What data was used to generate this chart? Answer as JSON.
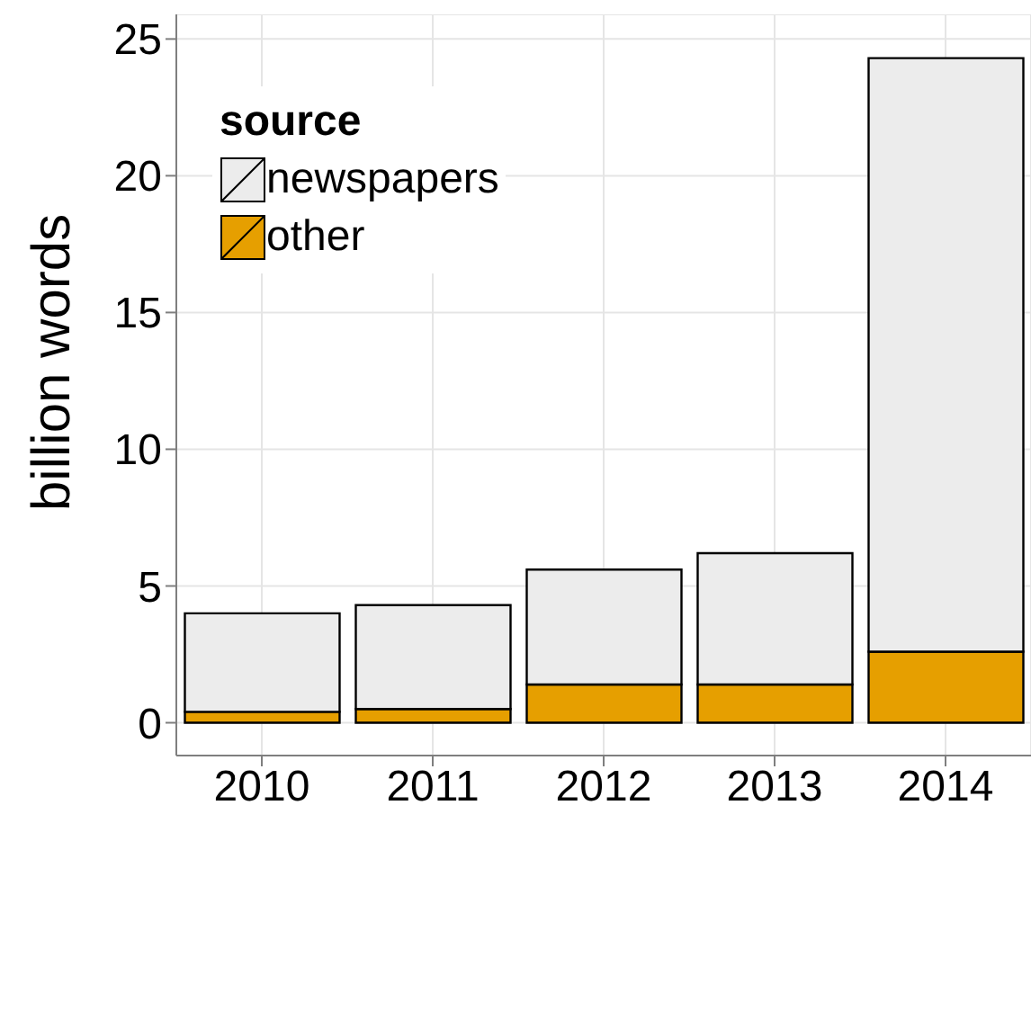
{
  "chart_data": {
    "type": "bar",
    "stacked": true,
    "ylabel": "billion words",
    "legend_title": "source",
    "categories": [
      "2010",
      "2011",
      "2012",
      "2013",
      "2014"
    ],
    "series": [
      {
        "name": "other",
        "color": "#e69f00",
        "values": [
          0.4,
          0.5,
          1.4,
          1.4,
          2.6
        ]
      },
      {
        "name": "newspapers",
        "color": "#ececec",
        "values": [
          3.6,
          3.8,
          4.2,
          4.8,
          21.7
        ]
      }
    ],
    "ylim": [
      -1.2,
      25.9
    ],
    "yticks": [
      0,
      5,
      10,
      15,
      20,
      25
    ],
    "grid": true,
    "legend": "top left"
  }
}
